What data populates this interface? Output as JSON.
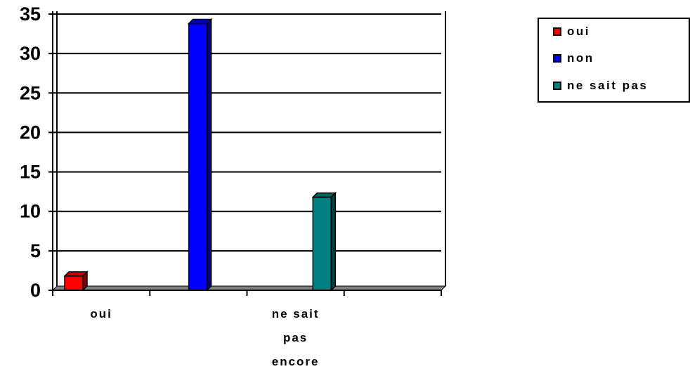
{
  "chart_data": {
    "type": "bar",
    "categories": [
      "oui",
      "",
      "ne sait pas encore",
      ""
    ],
    "category_lines": [
      [
        "oui"
      ],
      [],
      [
        "ne sait",
        "pas",
        "encore"
      ],
      []
    ],
    "series": [
      {
        "name": "oui",
        "color": "#ff0000",
        "values": [
          1.8,
          0,
          0,
          0
        ]
      },
      {
        "name": "non",
        "color": "#0000ff",
        "values": [
          0,
          33.8,
          0,
          0
        ]
      },
      {
        "name": "ne sait pas",
        "color": "#008080",
        "values": [
          0,
          0,
          11.8,
          0
        ]
      }
    ],
    "ylim": [
      0,
      35
    ],
    "yticks": [
      "0",
      "5",
      "10",
      "15",
      "20",
      "25",
      "30",
      "35"
    ],
    "grid": true,
    "legend_position": "top-right",
    "style": "3d-column"
  }
}
